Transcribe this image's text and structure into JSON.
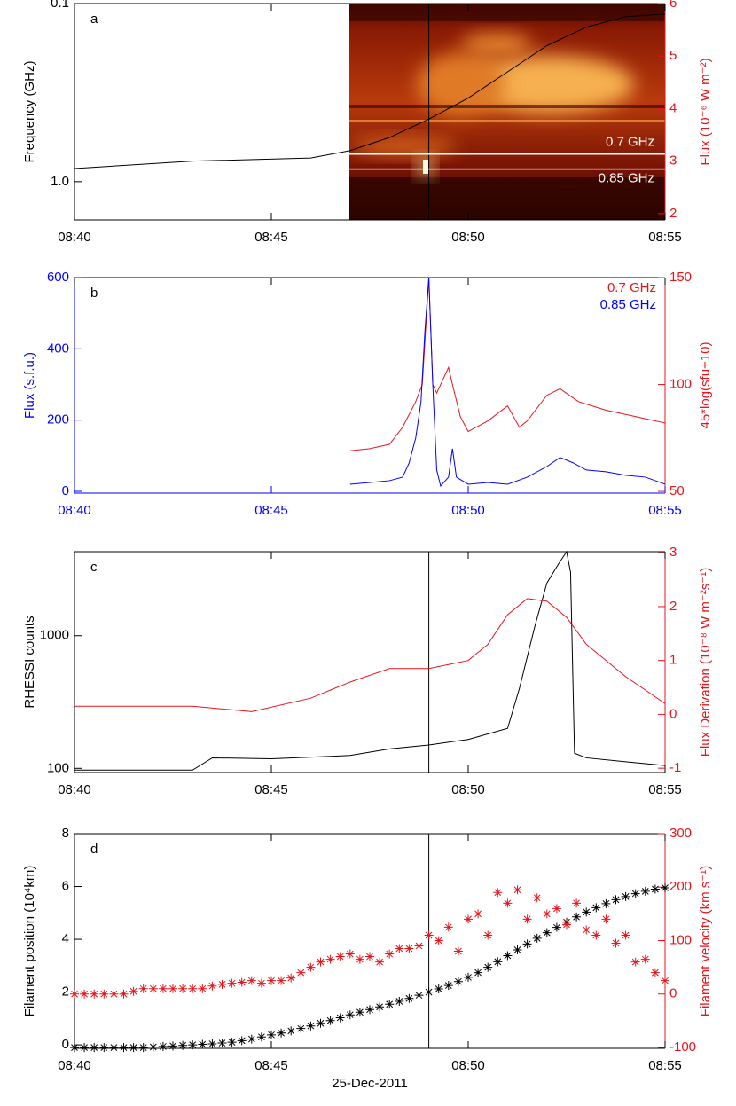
{
  "chart_data": [
    {
      "type": "line",
      "panel_label": "a",
      "ylabel": "Frequency (GHz)",
      "y2label": "Flux (10⁻⁶ W m⁻²)",
      "xlim": [
        "08:40",
        "08:55"
      ],
      "xticks": [
        "08:40",
        "08:45",
        "08:50",
        "08:55"
      ],
      "ylog": true,
      "ylim": [
        1.64,
        0.1
      ],
      "yticks": [
        0.1,
        {
          "value": 1,
          "label": "1.0"
        }
      ],
      "y2lim": [
        1.88,
        6
      ],
      "y2ticks": [
        2,
        3,
        4,
        5,
        6
      ],
      "x_color": "#000000",
      "y_color": "#000000",
      "y2_color": "#e8141b",
      "annotations": [
        {
          "text": "0.7 GHz",
          "value": 0.7
        },
        {
          "text": "0.85 GHz",
          "value": 0.85
        }
      ],
      "series": [
        {
          "axis": "y2",
          "color": "#000000",
          "x": [
            "08:40:00",
            "08:43:00",
            "08:46:00",
            "08:47:00",
            "08:48:00",
            "08:49:00",
            "08:50:00",
            "08:51:00",
            "08:52:00",
            "08:53:00",
            "08:54:00",
            "08:55:00"
          ],
          "values": [
            2.86,
            3.0,
            3.06,
            3.2,
            3.45,
            3.8,
            4.2,
            4.7,
            5.2,
            5.55,
            5.75,
            5.8
          ]
        }
      ]
    },
    {
      "type": "line",
      "panel_label": "b",
      "ylabel": "Flux (s.f.u.)",
      "y2label": "45*log(sfu+10)",
      "xlim": [
        "08:40",
        "08:55"
      ],
      "xticks": [
        "08:40",
        "08:45",
        "08:50",
        "08:55"
      ],
      "ylog": false,
      "ylim": [
        -5,
        600
      ],
      "yticks": [
        0,
        200,
        400,
        600
      ],
      "y2lim": [
        49.2,
        150
      ],
      "y2ticks": [
        50,
        100,
        150
      ],
      "x_color": "#0000ff",
      "y_color": "#0000ff",
      "y2_color": "#e8141b",
      "legend": "upper right",
      "series": [
        {
          "name": "0.7 GHz",
          "axis": "y2",
          "color": "#e8141b",
          "x": [
            "08:47:00",
            "08:47:30",
            "08:48:00",
            "08:48:20",
            "08:48:40",
            "08:48:50",
            "08:49:00",
            "08:49:06",
            "08:49:12",
            "08:49:30",
            "08:49:36",
            "08:49:48",
            "08:50:00",
            "08:50:30",
            "08:51:00",
            "08:51:18",
            "08:51:30",
            "08:52:00",
            "08:52:20",
            "08:52:48",
            "08:53:30",
            "08:54:00",
            "08:54:30",
            "08:55:00"
          ],
          "values": [
            69,
            70,
            72,
            80,
            92,
            100,
            150,
            100,
            96,
            108,
            100,
            85,
            78,
            83,
            90,
            80,
            83,
            95,
            98,
            92,
            88,
            86,
            84,
            82
          ]
        },
        {
          "name": "0.85 GHz",
          "axis": "y",
          "color": "#0000ff",
          "x": [
            "08:47:00",
            "08:47:30",
            "08:48:00",
            "08:48:20",
            "08:48:30",
            "08:48:40",
            "08:48:48",
            "08:48:54",
            "08:49:00",
            "08:49:06",
            "08:49:12",
            "08:49:18",
            "08:49:30",
            "08:49:36",
            "08:49:42",
            "08:50:00",
            "08:50:30",
            "08:51:00",
            "08:51:30",
            "08:52:00",
            "08:52:20",
            "08:52:40",
            "08:53:00",
            "08:53:30",
            "08:54:00",
            "08:54:30",
            "08:55:00"
          ],
          "values": [
            20,
            25,
            30,
            40,
            80,
            150,
            250,
            450,
            600,
            300,
            60,
            15,
            40,
            120,
            40,
            20,
            25,
            20,
            40,
            70,
            95,
            80,
            60,
            55,
            45,
            40,
            20
          ]
        }
      ]
    },
    {
      "type": "line",
      "panel_label": "c",
      "ylabel": "RHESSI counts",
      "y2label": "Flux Derivation (10⁻⁸ W m⁻²s⁻¹)",
      "xlim": [
        "08:40",
        "08:55"
      ],
      "xticks": [
        "08:40",
        "08:45",
        "08:50",
        "08:55"
      ],
      "ylog": true,
      "ylim": [
        93,
        4300
      ],
      "yticks": [
        100,
        1000
      ],
      "y2lim": [
        -1.08,
        3.02
      ],
      "y2ticks": [
        -1,
        0,
        1,
        2,
        3
      ],
      "x_color": "#000000",
      "y_color": "#000000",
      "y2_color": "#e8141b",
      "series": [
        {
          "axis": "y",
          "color": "#000000",
          "x": [
            "08:40:00",
            "08:43:00",
            "08:43:30",
            "08:45:00",
            "08:47:00",
            "08:48:00",
            "08:49:00",
            "08:50:00",
            "08:51:00",
            "08:51:18",
            "08:51:42",
            "08:52:00",
            "08:52:18",
            "08:52:30",
            "08:52:36",
            "08:52:42",
            "08:53:00",
            "08:54:00",
            "08:55:00"
          ],
          "values": [
            97,
            97,
            120,
            118,
            125,
            140,
            150,
            165,
            200,
            400,
            1200,
            2500,
            3500,
            4300,
            3000,
            130,
            120,
            112,
            105
          ]
        },
        {
          "axis": "y2",
          "color": "#e8141b",
          "x": [
            "08:40:00",
            "08:43:00",
            "08:44:30",
            "08:46:00",
            "08:47:00",
            "08:48:00",
            "08:49:00",
            "08:50:00",
            "08:50:30",
            "08:51:00",
            "08:51:30",
            "08:52:00",
            "08:52:30",
            "08:53:00",
            "08:54:00",
            "08:55:00"
          ],
          "values": [
            0.15,
            0.15,
            0.05,
            0.3,
            0.6,
            0.85,
            0.85,
            1.0,
            1.3,
            1.85,
            2.15,
            2.1,
            1.8,
            1.3,
            0.7,
            0.2
          ]
        }
      ]
    },
    {
      "type": "scatter",
      "panel_label": "d",
      "ylabel": "Filament position (10⁴km)",
      "y2label": "Filament velocity (km s⁻¹)",
      "xlabel": "25-Dec-2011",
      "xlim": [
        "08:40",
        "08:55"
      ],
      "xticks": [
        "08:40",
        "08:45",
        "08:50",
        "08:55"
      ],
      "ylog": false,
      "ylim": [
        -0.13,
        8
      ],
      "yticks": [
        0,
        2,
        4,
        6,
        8
      ],
      "y2lim": [
        -101.7,
        300
      ],
      "y2ticks": [
        -100,
        0,
        100,
        200,
        300
      ],
      "x_color": "#000000",
      "y_color": "#000000",
      "y2_color": "#e8141b",
      "x": [
        "08:40:00",
        "08:40:15",
        "08:40:30",
        "08:40:45",
        "08:41:00",
        "08:41:15",
        "08:41:30",
        "08:41:45",
        "08:42:00",
        "08:42:15",
        "08:42:30",
        "08:42:45",
        "08:43:00",
        "08:43:15",
        "08:43:30",
        "08:43:45",
        "08:44:00",
        "08:44:15",
        "08:44:30",
        "08:44:45",
        "08:45:00",
        "08:45:15",
        "08:45:30",
        "08:45:45",
        "08:46:00",
        "08:46:15",
        "08:46:30",
        "08:46:45",
        "08:47:00",
        "08:47:15",
        "08:47:30",
        "08:47:45",
        "08:48:00",
        "08:48:15",
        "08:48:30",
        "08:48:45",
        "08:49:00",
        "08:49:15",
        "08:49:30",
        "08:49:45",
        "08:50:00",
        "08:50:15",
        "08:50:30",
        "08:50:45",
        "08:51:00",
        "08:51:15",
        "08:51:30",
        "08:51:45",
        "08:52:00",
        "08:52:15",
        "08:52:30",
        "08:52:45",
        "08:53:00",
        "08:53:15",
        "08:53:30",
        "08:53:45",
        "08:54:00",
        "08:54:15",
        "08:54:30",
        "08:54:45",
        "08:55:00"
      ],
      "series": [
        {
          "axis": "y",
          "color": "#000000",
          "values": [
            -0.1,
            -0.1,
            -0.1,
            -0.1,
            -0.1,
            -0.1,
            -0.1,
            -0.1,
            -0.08,
            -0.06,
            -0.04,
            -0.02,
            0,
            0.02,
            0.04,
            0.07,
            0.1,
            0.16,
            0.22,
            0.3,
            0.38,
            0.45,
            0.53,
            0.62,
            0.72,
            0.82,
            0.92,
            1.03,
            1.14,
            1.24,
            1.34,
            1.44,
            1.54,
            1.65,
            1.76,
            1.88,
            2.0,
            2.12,
            2.25,
            2.4,
            2.56,
            2.74,
            2.94,
            3.15,
            3.38,
            3.6,
            3.82,
            4.04,
            4.25,
            4.45,
            4.65,
            4.85,
            5.03,
            5.2,
            5.35,
            5.5,
            5.62,
            5.73,
            5.82,
            5.9,
            5.95
          ]
        },
        {
          "axis": "y2",
          "color": "#e8141b",
          "values": [
            0,
            0,
            0,
            0,
            0,
            0,
            5,
            10,
            10,
            10,
            10,
            10,
            10,
            10,
            15,
            18,
            20,
            22,
            25,
            20,
            25,
            25,
            30,
            40,
            50,
            60,
            65,
            70,
            75,
            65,
            70,
            60,
            75,
            85,
            85,
            90,
            110,
            100,
            125,
            80,
            140,
            150,
            110,
            190,
            170,
            195,
            140,
            180,
            150,
            160,
            130,
            170,
            120,
            110,
            140,
            95,
            110,
            60,
            65,
            40,
            25
          ]
        }
      ]
    }
  ]
}
